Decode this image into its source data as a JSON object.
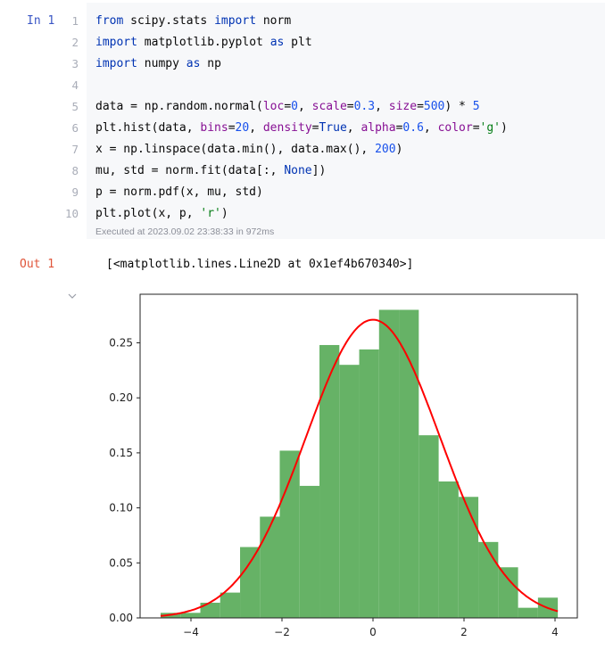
{
  "cell": {
    "prompt_in": "In 1",
    "line_numbers": [
      "1",
      "2",
      "3",
      "4",
      "5",
      "6",
      "7",
      "8",
      "9",
      "10"
    ],
    "code_lines": [
      [
        {
          "t": "from",
          "c": "kw"
        },
        {
          "t": " scipy.stats ",
          "c": ""
        },
        {
          "t": "import",
          "c": "kw"
        },
        {
          "t": " norm",
          "c": ""
        }
      ],
      [
        {
          "t": "import",
          "c": "kw"
        },
        {
          "t": " matplotlib.pyplot ",
          "c": ""
        },
        {
          "t": "as",
          "c": "kw"
        },
        {
          "t": " plt",
          "c": ""
        }
      ],
      [
        {
          "t": "import",
          "c": "kw"
        },
        {
          "t": " numpy ",
          "c": ""
        },
        {
          "t": "as",
          "c": "kw"
        },
        {
          "t": " np",
          "c": ""
        }
      ],
      [],
      [
        {
          "t": "data = np.random.normal(",
          "c": ""
        },
        {
          "t": "loc",
          "c": "arg"
        },
        {
          "t": "=",
          "c": ""
        },
        {
          "t": "0",
          "c": "num"
        },
        {
          "t": ", ",
          "c": ""
        },
        {
          "t": "scale",
          "c": "arg"
        },
        {
          "t": "=",
          "c": ""
        },
        {
          "t": "0.3",
          "c": "num"
        },
        {
          "t": ", ",
          "c": ""
        },
        {
          "t": "size",
          "c": "arg"
        },
        {
          "t": "=",
          "c": ""
        },
        {
          "t": "500",
          "c": "num"
        },
        {
          "t": ") * ",
          "c": ""
        },
        {
          "t": "5",
          "c": "num"
        }
      ],
      [
        {
          "t": "plt.hist(data, ",
          "c": ""
        },
        {
          "t": "bins",
          "c": "arg"
        },
        {
          "t": "=",
          "c": ""
        },
        {
          "t": "20",
          "c": "num"
        },
        {
          "t": ", ",
          "c": ""
        },
        {
          "t": "density",
          "c": "arg"
        },
        {
          "t": "=",
          "c": ""
        },
        {
          "t": "True",
          "c": "kw"
        },
        {
          "t": ", ",
          "c": ""
        },
        {
          "t": "alpha",
          "c": "arg"
        },
        {
          "t": "=",
          "c": ""
        },
        {
          "t": "0.6",
          "c": "num"
        },
        {
          "t": ", ",
          "c": ""
        },
        {
          "t": "color",
          "c": "arg"
        },
        {
          "t": "=",
          "c": ""
        },
        {
          "t": "'g'",
          "c": "str"
        },
        {
          "t": ")",
          "c": ""
        }
      ],
      [
        {
          "t": "x = np.linspace(data.min(), data.max(), ",
          "c": ""
        },
        {
          "t": "200",
          "c": "num"
        },
        {
          "t": ")",
          "c": ""
        }
      ],
      [
        {
          "t": "mu, std = norm.fit(data[:, ",
          "c": ""
        },
        {
          "t": "None",
          "c": "kw"
        },
        {
          "t": "])",
          "c": ""
        }
      ],
      [
        {
          "t": "p = norm.pdf(x, mu, std)",
          "c": ""
        }
      ],
      [
        {
          "t": "plt.plot(x, p, ",
          "c": ""
        },
        {
          "t": "'r'",
          "c": "str"
        },
        {
          "t": ")",
          "c": ""
        }
      ]
    ],
    "executed_info": "Executed at 2023.09.02 23:38:33 in 972ms"
  },
  "output": {
    "prompt_out": "Out 1",
    "text": "[<matplotlib.lines.Line2D at 0x1ef4b670340>]",
    "collapse_icon": "chevron-down-icon"
  },
  "colors": {
    "bar_fill": "#66b266",
    "curve": "#ff0000",
    "cell_bg": "#f7f8fa",
    "prompt_in": "#3a56c5",
    "prompt_out": "#e0553a"
  },
  "chart_data": {
    "type": "bar",
    "subtype": "histogram with fitted normal pdf line",
    "title": "",
    "xlabel": "",
    "ylabel": "",
    "xlim": [
      -5.08,
      4.48
    ],
    "ylim": [
      0,
      0.294
    ],
    "grid": false,
    "legend": null,
    "x_ticks": [
      -4,
      -2,
      0,
      2,
      4
    ],
    "x_tick_labels": [
      "−4",
      "−2",
      "0",
      "2",
      "4"
    ],
    "y_ticks": [
      0.0,
      0.05,
      0.1,
      0.15,
      0.2,
      0.25
    ],
    "y_tick_labels": [
      "0.00",
      "0.05",
      "0.10",
      "0.15",
      "0.20",
      "0.25"
    ],
    "bin_edges": [
      -4.667,
      -4.231,
      -3.794,
      -3.358,
      -2.921,
      -2.485,
      -2.049,
      -1.612,
      -1.176,
      -0.739,
      -0.303,
      0.133,
      0.57,
      1.006,
      1.443,
      1.879,
      2.315,
      2.752,
      3.188,
      3.625,
      4.061
    ],
    "series": [
      {
        "name": "histogram (density, alpha=0.6, green)",
        "type": "bar",
        "values": [
          0.0046,
          0.0046,
          0.0138,
          0.023,
          0.0644,
          0.092,
          0.152,
          0.12,
          0.248,
          0.23,
          0.244,
          0.28,
          0.28,
          0.166,
          0.124,
          0.11,
          0.069,
          0.046,
          0.0092,
          0.0184
        ]
      },
      {
        "name": "norm.pdf fit (red)",
        "type": "line",
        "mu": 0.0,
        "std": 1.472,
        "x_range": [
          -4.667,
          4.061
        ],
        "peak": 0.271
      }
    ]
  }
}
